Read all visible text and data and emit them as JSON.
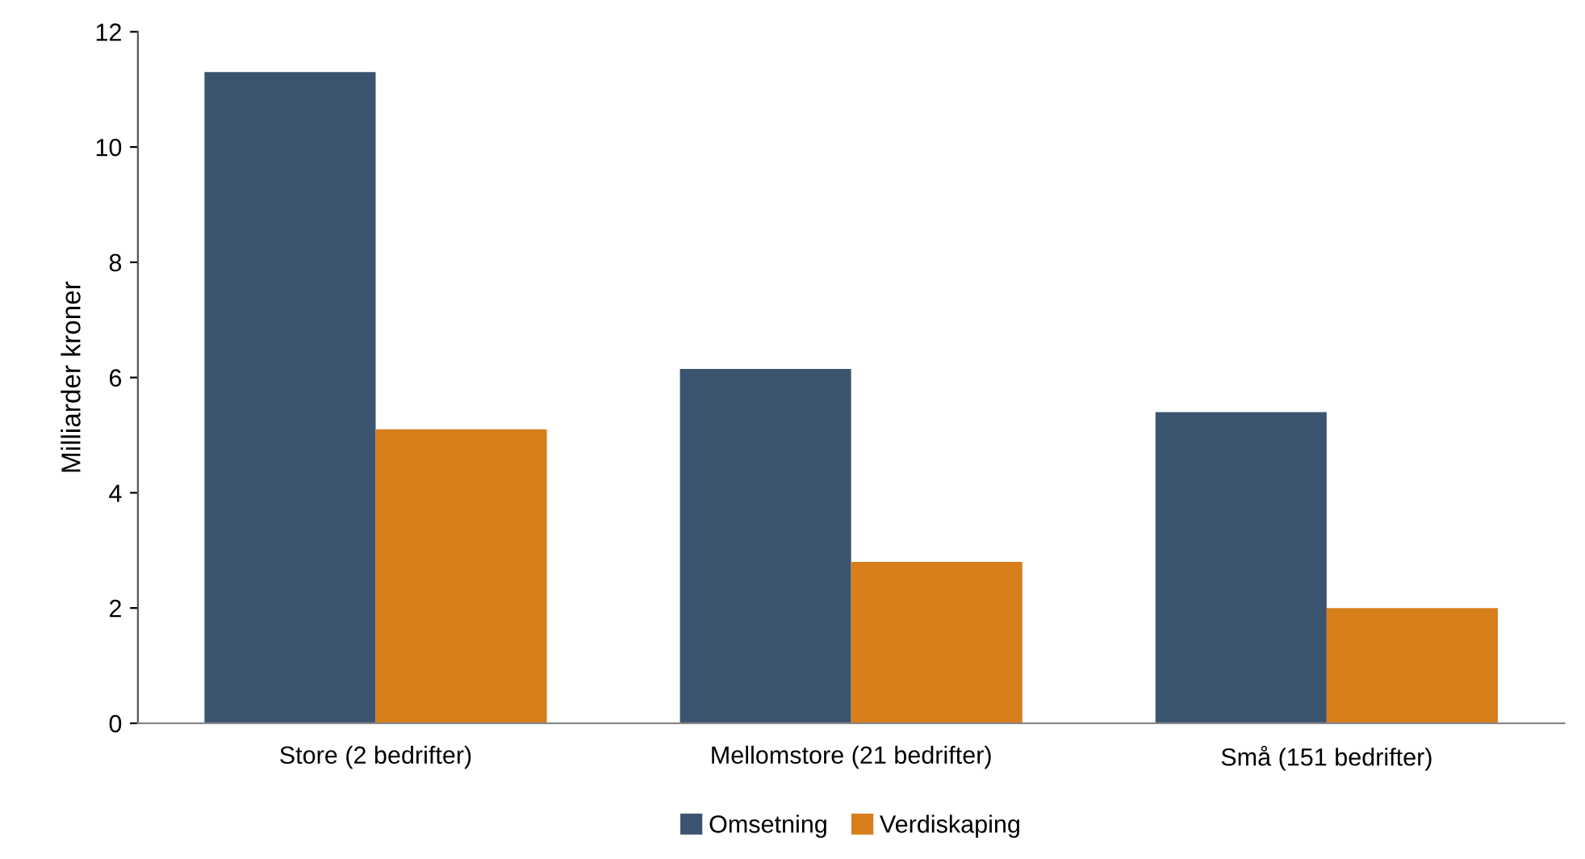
{
  "chart_data": {
    "type": "bar",
    "ylabel": "Milliarder kroner",
    "categories": [
      "Store (2 bedrifter)",
      "Mellomstore (21 bedrifter)",
      "Små (151 bedrifter)"
    ],
    "series": [
      {
        "name": "Omsetning",
        "color": "#3b5470",
        "values": [
          11.3,
          6.15,
          5.4
        ]
      },
      {
        "name": "Verdiskaping",
        "color": "#d87e1a",
        "values": [
          5.1,
          2.8,
          2.0
        ]
      }
    ],
    "ylim": [
      0,
      12
    ],
    "yticks": [
      0,
      2,
      4,
      6,
      8,
      10,
      12
    ],
    "grid": false,
    "legend": "bottom"
  }
}
